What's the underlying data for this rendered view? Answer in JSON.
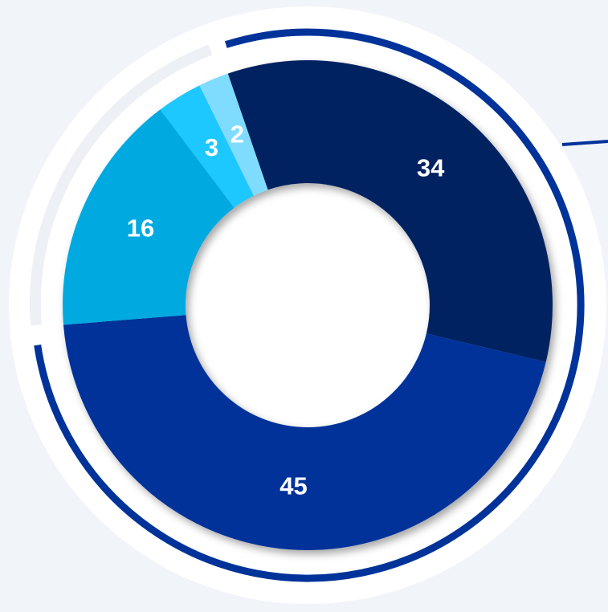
{
  "chart_data": {
    "type": "pie",
    "categories": [
      null,
      null,
      null,
      null,
      null
    ],
    "values": [
      34,
      45,
      16,
      3,
      2
    ],
    "colors": [
      "#002060",
      "#003399",
      "#00a9e0",
      "#1ec8ff",
      "#7fdcff"
    ]
  }
}
